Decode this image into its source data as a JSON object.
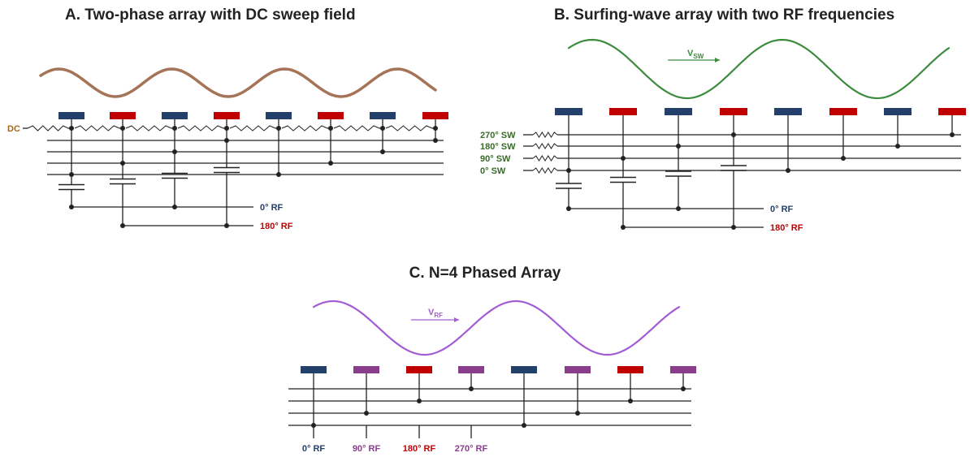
{
  "colors": {
    "blue": "#22406a",
    "red": "#c00000",
    "purple": "#8a3d8c",
    "brown": "#a57458",
    "green": "#3d8c3d",
    "violet": "#a45bd6",
    "dc_label": "#a06a1a",
    "sw_label": "#3a6a2a",
    "wire": "#222222"
  },
  "panel_a": {
    "title": "A. Two-phase array with DC sweep field",
    "dc_label": "DC",
    "rf0_label": "0° RF",
    "rf180_label": "180° RF"
  },
  "panel_b": {
    "title": "B. Surfing-wave array with two RF frequencies",
    "velocity_main": "V",
    "velocity_sub": "SW",
    "sweep_labels": [
      "270° SW",
      "180° SW",
      "90° SW",
      "0° SW"
    ],
    "rf0_label": "0° RF",
    "rf180_label": "180° RF"
  },
  "panel_c": {
    "title": "C.  N=4  Phased Array",
    "velocity_main": "V",
    "velocity_sub": "RF",
    "phase_labels": [
      "0° RF",
      "90° RF",
      "180° RF",
      "270° RF"
    ]
  }
}
